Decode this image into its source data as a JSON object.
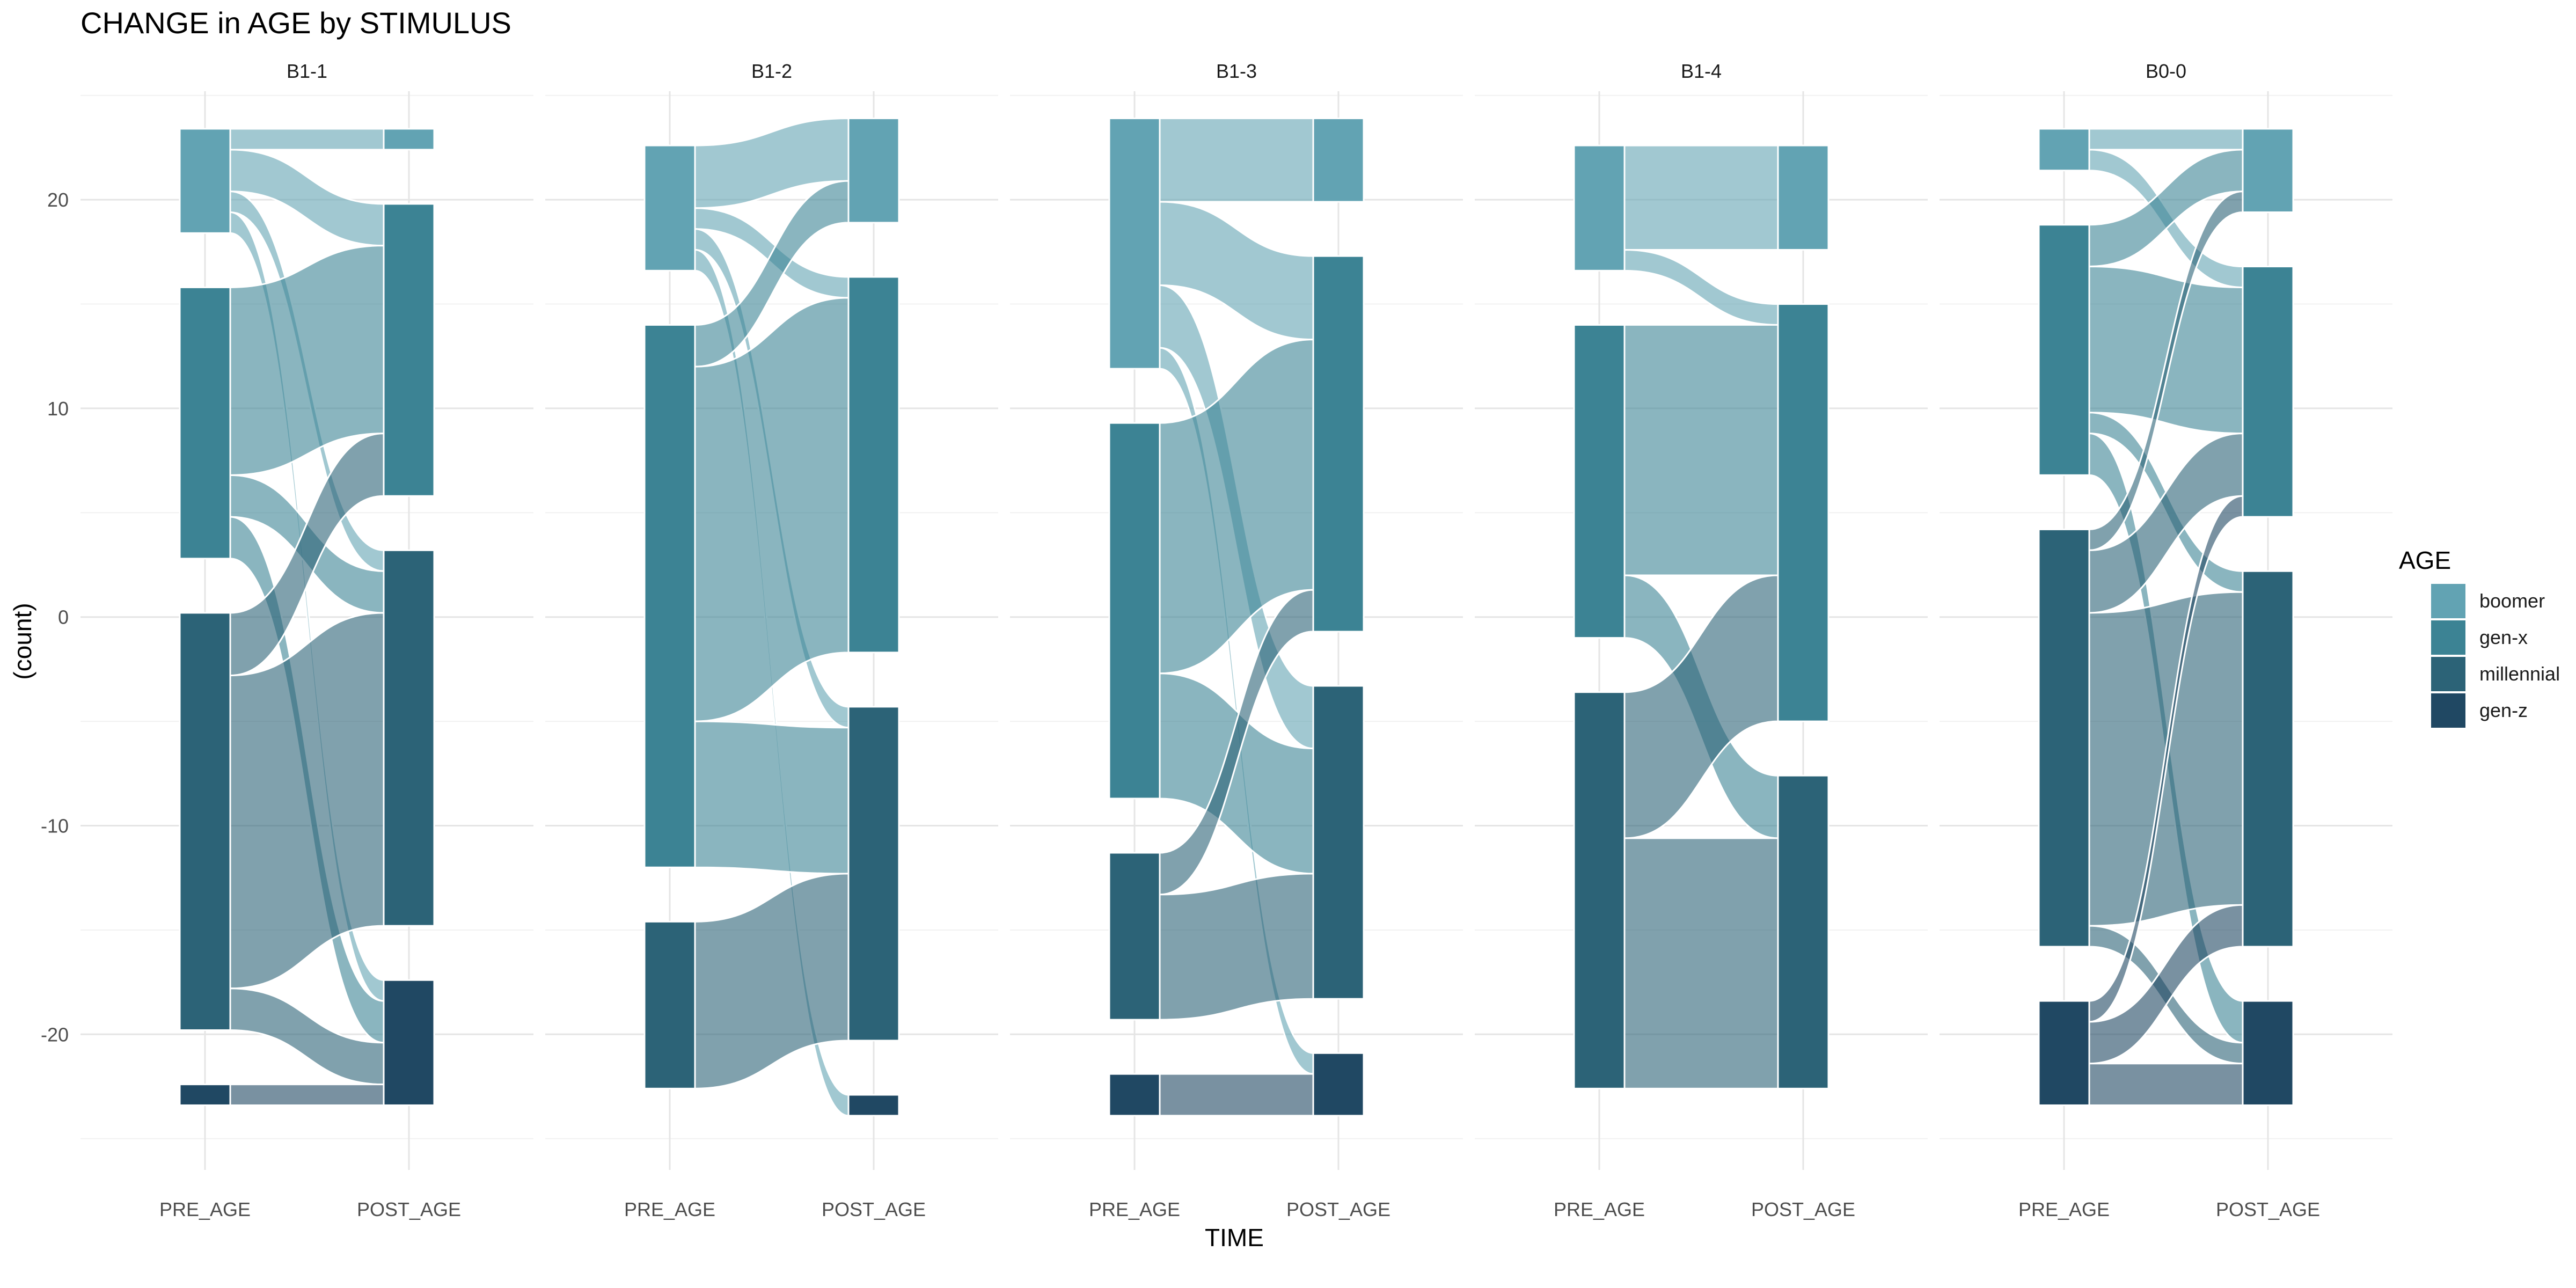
{
  "chart_data": {
    "type": "alluvial",
    "title": "CHANGE in AGE by STIMULUS",
    "xlabel": "TIME",
    "ylabel": "(count)",
    "x_categories": [
      "PRE_AGE",
      "POST_AGE"
    ],
    "y_ticks": [
      -20,
      -10,
      0,
      10,
      20
    ],
    "ylim": [
      -26.5,
      27
    ],
    "grid": true,
    "legend": {
      "title": "AGE",
      "position": "right",
      "items": [
        {
          "label": "boomer",
          "color": "#62A3B3"
        },
        {
          "label": "gen-x",
          "color": "#3C8394"
        },
        {
          "label": "millennial",
          "color": "#2C6377"
        },
        {
          "label": "gen-z",
          "color": "#204863"
        }
      ]
    },
    "categories_order": [
      "boomer",
      "gen-x",
      "millennial",
      "gen-z"
    ],
    "flow_alpha": 0.6,
    "facets": [
      {
        "label": "B1-1",
        "flows": [
          {
            "from": "boomer",
            "to": "boomer",
            "value": 1
          },
          {
            "from": "boomer",
            "to": "gen-x",
            "value": 2
          },
          {
            "from": "boomer",
            "to": "millennial",
            "value": 1
          },
          {
            "from": "boomer",
            "to": "gen-z",
            "value": 1
          },
          {
            "from": "gen-x",
            "to": "gen-x",
            "value": 9
          },
          {
            "from": "gen-x",
            "to": "millennial",
            "value": 2
          },
          {
            "from": "gen-x",
            "to": "gen-z",
            "value": 2
          },
          {
            "from": "millennial",
            "to": "gen-x",
            "value": 3
          },
          {
            "from": "millennial",
            "to": "millennial",
            "value": 15
          },
          {
            "from": "millennial",
            "to": "gen-z",
            "value": 2
          },
          {
            "from": "gen-z",
            "to": "gen-z",
            "value": 1
          }
        ]
      },
      {
        "label": "B1-2",
        "flows": [
          {
            "from": "boomer",
            "to": "boomer",
            "value": 3
          },
          {
            "from": "boomer",
            "to": "gen-x",
            "value": 1
          },
          {
            "from": "boomer",
            "to": "millennial",
            "value": 1
          },
          {
            "from": "boomer",
            "to": "gen-z",
            "value": 1
          },
          {
            "from": "gen-x",
            "to": "boomer",
            "value": 2
          },
          {
            "from": "gen-x",
            "to": "gen-x",
            "value": 17
          },
          {
            "from": "gen-x",
            "to": "millennial",
            "value": 7
          },
          {
            "from": "millennial",
            "to": "millennial",
            "value": 8
          }
        ]
      },
      {
        "label": "B1-3",
        "flows": [
          {
            "from": "boomer",
            "to": "boomer",
            "value": 4
          },
          {
            "from": "boomer",
            "to": "gen-x",
            "value": 4
          },
          {
            "from": "boomer",
            "to": "millennial",
            "value": 3
          },
          {
            "from": "boomer",
            "to": "gen-z",
            "value": 1
          },
          {
            "from": "gen-x",
            "to": "gen-x",
            "value": 12
          },
          {
            "from": "gen-x",
            "to": "millennial",
            "value": 6
          },
          {
            "from": "millennial",
            "to": "gen-x",
            "value": 2
          },
          {
            "from": "millennial",
            "to": "millennial",
            "value": 6
          },
          {
            "from": "gen-z",
            "to": "gen-z",
            "value": 2
          }
        ]
      },
      {
        "label": "B1-4",
        "flows": [
          {
            "from": "boomer",
            "to": "boomer",
            "value": 5
          },
          {
            "from": "boomer",
            "to": "gen-x",
            "value": 1
          },
          {
            "from": "gen-x",
            "to": "gen-x",
            "value": 12
          },
          {
            "from": "gen-x",
            "to": "millennial",
            "value": 3
          },
          {
            "from": "millennial",
            "to": "gen-x",
            "value": 7
          },
          {
            "from": "millennial",
            "to": "millennial",
            "value": 12
          }
        ]
      },
      {
        "label": "B0-0",
        "flows": [
          {
            "from": "boomer",
            "to": "boomer",
            "value": 1
          },
          {
            "from": "boomer",
            "to": "gen-x",
            "value": 1
          },
          {
            "from": "gen-x",
            "to": "boomer",
            "value": 2
          },
          {
            "from": "gen-x",
            "to": "gen-x",
            "value": 7
          },
          {
            "from": "gen-x",
            "to": "millennial",
            "value": 1
          },
          {
            "from": "gen-x",
            "to": "gen-z",
            "value": 2
          },
          {
            "from": "millennial",
            "to": "boomer",
            "value": 1
          },
          {
            "from": "millennial",
            "to": "gen-x",
            "value": 3
          },
          {
            "from": "millennial",
            "to": "millennial",
            "value": 15
          },
          {
            "from": "millennial",
            "to": "gen-z",
            "value": 1
          },
          {
            "from": "gen-z",
            "to": "gen-x",
            "value": 1
          },
          {
            "from": "gen-z",
            "to": "millennial",
            "value": 2
          },
          {
            "from": "gen-z",
            "to": "gen-z",
            "value": 2
          }
        ]
      }
    ]
  }
}
